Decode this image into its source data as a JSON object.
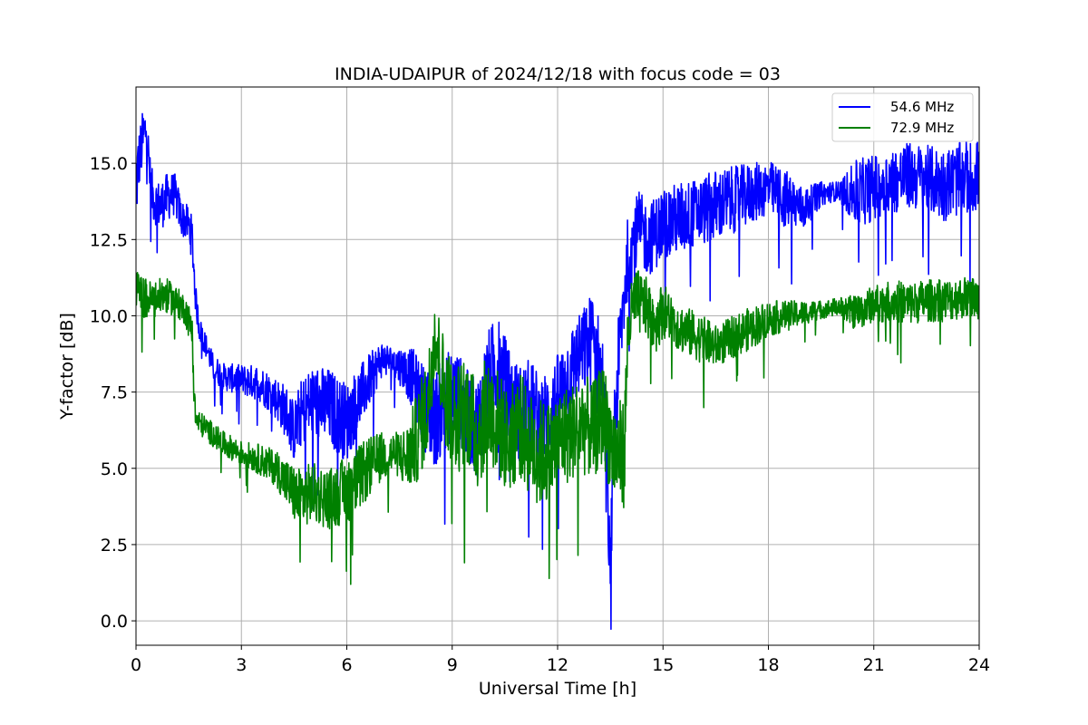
{
  "chart_data": {
    "type": "line",
    "title": "INDIA-UDAIPUR of 2024/12/18 with focus code = 03",
    "xlabel": "Universal Time [h]",
    "ylabel": "Y-factor [dB]",
    "xlim": [
      0,
      24
    ],
    "ylim": [
      -0.8,
      17.5
    ],
    "xticks": [
      0,
      3,
      6,
      9,
      12,
      15,
      18,
      21,
      24
    ],
    "xtick_labels": [
      "0",
      "3",
      "6",
      "9",
      "12",
      "15",
      "18",
      "21",
      "24"
    ],
    "yticks": [
      0,
      2.5,
      5,
      7.5,
      10,
      12.5,
      15
    ],
    "ytick_labels": [
      "0.0",
      "2.5",
      "5.0",
      "7.5",
      "10.0",
      "12.5",
      "15.0"
    ],
    "grid": true,
    "legend_position": "top-right",
    "series": [
      {
        "name": "54.6 MHz",
        "color": "#0000ff",
        "x": [
          0,
          0.1,
          0.2,
          0.3,
          0.4,
          0.5,
          0.7,
          0.9,
          1.1,
          1.3,
          1.5,
          1.6,
          1.7,
          1.8,
          2.0,
          2.2,
          2.5,
          3.0,
          3.5,
          4.0,
          4.3,
          4.5,
          4.7,
          5.0,
          5.5,
          6.0,
          6.3,
          6.6,
          7.0,
          7.3,
          7.6,
          7.9,
          8.2,
          8.5,
          8.8,
          9.1,
          9.4,
          9.7,
          10.0,
          10.3,
          10.6,
          10.9,
          11.2,
          11.5,
          11.8,
          12.1,
          12.4,
          12.7,
          13.0,
          13.3,
          13.5,
          13.6,
          13.8,
          14.0,
          14.3,
          14.6,
          15.0,
          15.5,
          16.0,
          16.5,
          17.0,
          17.5,
          18.0,
          18.5,
          19.0,
          19.5,
          20.0,
          20.5,
          21.0,
          21.5,
          22.0,
          22.5,
          23.0,
          23.5,
          24.0
        ],
        "values": [
          14.3,
          15.2,
          15.8,
          16.2,
          14.5,
          13.8,
          13.6,
          13.9,
          14.0,
          13.2,
          13.0,
          12.5,
          10.5,
          9.6,
          9.0,
          8.3,
          8.0,
          7.9,
          7.8,
          7.3,
          6.8,
          6.2,
          6.8,
          7.2,
          7.0,
          6.5,
          7.2,
          7.8,
          8.6,
          8.5,
          8.3,
          7.9,
          7.0,
          6.6,
          7.2,
          7.5,
          6.8,
          6.3,
          7.8,
          8.5,
          7.5,
          6.8,
          7.0,
          6.5,
          6.8,
          7.5,
          8.3,
          8.8,
          9.2,
          7.5,
          1.5,
          6.0,
          9.5,
          12.0,
          12.8,
          12.5,
          13.0,
          13.2,
          13.4,
          13.6,
          13.8,
          14.0,
          14.2,
          13.8,
          13.5,
          14.0,
          14.1,
          14.0,
          14.2,
          14.4,
          14.6,
          14.5,
          14.3,
          14.5,
          14.6
        ],
        "ranges": [
          3.0,
          2.0,
          2.0,
          1.6,
          1.5,
          1.5,
          1.6,
          1.6,
          1.4,
          1.2,
          1.2,
          1.5,
          1.0,
          0.8,
          0.8,
          0.9,
          0.9,
          1.0,
          1.2,
          1.4,
          1.8,
          2.0,
          2.2,
          2.4,
          2.6,
          2.6,
          2.2,
          1.8,
          1.2,
          1.0,
          1.4,
          2.0,
          2.8,
          3.2,
          3.2,
          3.0,
          3.0,
          3.2,
          3.4,
          3.2,
          3.0,
          3.2,
          3.2,
          3.2,
          3.0,
          3.0,
          2.8,
          2.8,
          3.4,
          3.8,
          2.0,
          3.5,
          3.2,
          2.6,
          2.6,
          2.4,
          2.4,
          2.4,
          2.2,
          2.4,
          2.2,
          2.0,
          1.8,
          2.0,
          1.4,
          0.8,
          0.6,
          2.2,
          2.2,
          2.2,
          2.2,
          2.2,
          2.4,
          2.4,
          2.4
        ]
      },
      {
        "name": "72.9 MHz",
        "color": "#008000",
        "x": [
          0,
          0.2,
          0.5,
          0.8,
          1.1,
          1.4,
          1.6,
          1.65,
          1.7,
          2.0,
          2.5,
          3.0,
          3.5,
          4.0,
          4.3,
          4.6,
          5.0,
          5.5,
          6.0,
          6.3,
          6.6,
          7.0,
          7.4,
          7.7,
          8.0,
          8.3,
          8.5,
          8.8,
          9.1,
          9.4,
          9.7,
          10.0,
          10.3,
          10.6,
          10.9,
          11.2,
          11.5,
          11.8,
          12.1,
          12.4,
          12.7,
          13.0,
          13.3,
          13.6,
          13.9,
          14.0,
          14.2,
          14.5,
          14.8,
          15.0,
          15.5,
          16.0,
          16.5,
          17.0,
          17.5,
          18.0,
          18.5,
          19.0,
          19.5,
          20.0,
          20.5,
          21.0,
          21.5,
          22.0,
          22.5,
          23.0,
          23.5,
          24.0
        ],
        "values": [
          10.9,
          10.6,
          10.5,
          10.7,
          10.5,
          10.2,
          9.5,
          7.5,
          6.6,
          6.3,
          5.8,
          5.5,
          5.3,
          5.0,
          4.5,
          4.0,
          4.2,
          4.0,
          4.3,
          4.6,
          5.0,
          5.4,
          5.5,
          5.3,
          6.0,
          7.0,
          9.5,
          7.5,
          6.5,
          7.0,
          6.0,
          7.0,
          6.5,
          5.8,
          6.5,
          5.8,
          5.5,
          5.5,
          6.0,
          6.2,
          6.5,
          6.2,
          6.8,
          5.5,
          5.5,
          9.5,
          10.5,
          10.3,
          9.8,
          10.2,
          9.6,
          9.3,
          9.0,
          9.3,
          9.6,
          9.9,
          10.0,
          10.1,
          10.2,
          10.3,
          10.1,
          10.4,
          10.5,
          10.4,
          10.5,
          10.5,
          10.6,
          10.6
        ],
        "ranges": [
          1.2,
          1.4,
          1.2,
          1.2,
          1.0,
          1.0,
          1.2,
          1.0,
          0.8,
          0.8,
          0.8,
          0.8,
          1.0,
          1.2,
          1.6,
          2.0,
          2.0,
          2.0,
          2.2,
          2.2,
          2.0,
          1.6,
          1.4,
          2.2,
          3.0,
          3.4,
          2.6,
          3.4,
          3.6,
          3.6,
          3.6,
          3.6,
          3.6,
          3.4,
          3.6,
          3.4,
          3.6,
          3.4,
          3.4,
          3.2,
          3.4,
          3.2,
          3.4,
          3.4,
          3.6,
          2.2,
          2.2,
          2.0,
          2.0,
          1.8,
          1.6,
          1.6,
          1.4,
          1.4,
          1.4,
          1.2,
          1.0,
          0.8,
          0.6,
          0.6,
          1.2,
          1.2,
          1.4,
          1.4,
          1.4,
          1.4,
          1.4,
          1.4
        ]
      }
    ]
  }
}
